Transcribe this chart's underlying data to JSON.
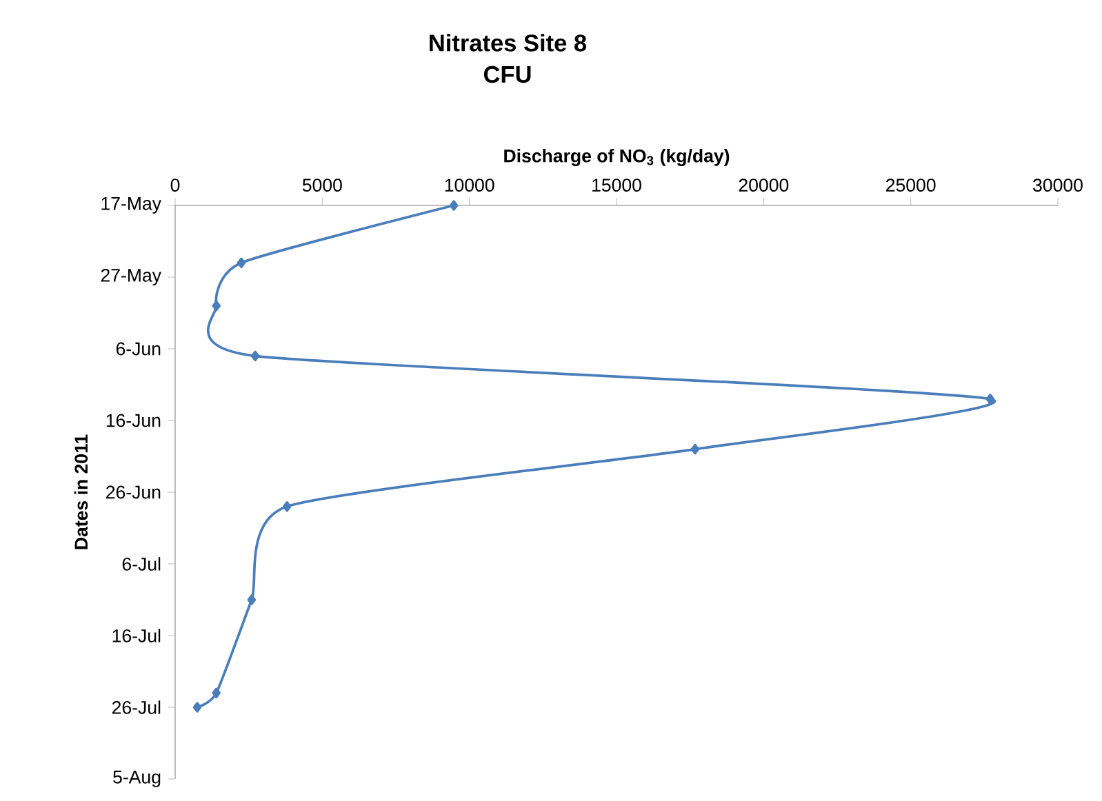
{
  "chart_data": {
    "type": "line",
    "orientation": "horizontal",
    "title": "Nitrates Site 8",
    "subtitle": "CFU",
    "xlabel": "Discharge of NO$_{3}$ (kg/day)",
    "ylabel": "Dates in 2011",
    "x": [
      "2011-05-17",
      "2011-05-25",
      "2011-05-31",
      "2011-06-07",
      "2011-06-13",
      "2011-06-20",
      "2011-06-28",
      "2011-07-11",
      "2011-07-24",
      "2011-07-26"
    ],
    "series": [
      {
        "color": "#4a7ebb",
        "values": [
          9470,
          2250,
          1400,
          2720,
          27700,
          17670,
          3800,
          2600,
          1400,
          750
        ]
      }
    ],
    "xlim": [
      0,
      30000
    ],
    "xticks": [
      0,
      5000,
      10000,
      15000,
      20000,
      25000,
      30000
    ],
    "ylim": [
      "2011-08-05",
      "2011-05-17"
    ],
    "yticks": [
      {
        "value": "2011-05-17",
        "label": "17-May"
      },
      {
        "value": "2011-05-27",
        "label": "27-May"
      },
      {
        "value": "2011-06-06",
        "label": "6-Jun"
      },
      {
        "value": "2011-06-16",
        "label": "16-Jun"
      },
      {
        "value": "2011-06-26",
        "label": "26-Jun"
      },
      {
        "value": "2011-07-06",
        "label": "6-Jul"
      },
      {
        "value": "2011-07-16",
        "label": "16-Jul"
      },
      {
        "value": "2011-07-26",
        "label": "26-Jul"
      },
      {
        "value": "2011-08-05",
        "label": "5-Aug"
      }
    ],
    "marker": "diamond"
  }
}
